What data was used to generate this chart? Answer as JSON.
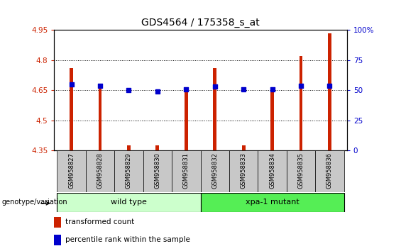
{
  "title": "GDS4564 / 175358_s_at",
  "samples": [
    "GSM958827",
    "GSM958828",
    "GSM958829",
    "GSM958830",
    "GSM958831",
    "GSM958832",
    "GSM958833",
    "GSM958834",
    "GSM958835",
    "GSM958836"
  ],
  "transformed_count": [
    4.76,
    4.66,
    4.375,
    4.375,
    4.65,
    4.76,
    4.375,
    4.65,
    4.82,
    4.935
  ],
  "percentile_rank": [
    55,
    54,
    50,
    49,
    51,
    53,
    51,
    51,
    54,
    54
  ],
  "ylim_left": [
    4.35,
    4.95
  ],
  "ylim_right": [
    0,
    100
  ],
  "yticks_left": [
    4.35,
    4.5,
    4.65,
    4.8,
    4.95
  ],
  "yticks_right": [
    0,
    25,
    50,
    75,
    100
  ],
  "bar_color": "#CC2200",
  "dot_color": "#0000CC",
  "background_color": "#FFFFFF",
  "plot_bg_color": "#FFFFFF",
  "grid_color": "#000000",
  "wild_type_label": "wild type",
  "mutant_label": "xpa-1 mutant",
  "wild_type_color": "#CCFFCC",
  "mutant_color": "#55EE55",
  "genotype_label": "genotype/variation",
  "legend_items": [
    "transformed count",
    "percentile rank within the sample"
  ],
  "legend_colors": [
    "#CC2200",
    "#0000CC"
  ],
  "tick_label_color_left": "#CC2200",
  "tick_label_color_right": "#0000CC",
  "title_fontsize": 10,
  "tick_fontsize": 7.5,
  "bar_width": 0.12,
  "dot_size": 18,
  "gray_color": "#C8C8C8"
}
